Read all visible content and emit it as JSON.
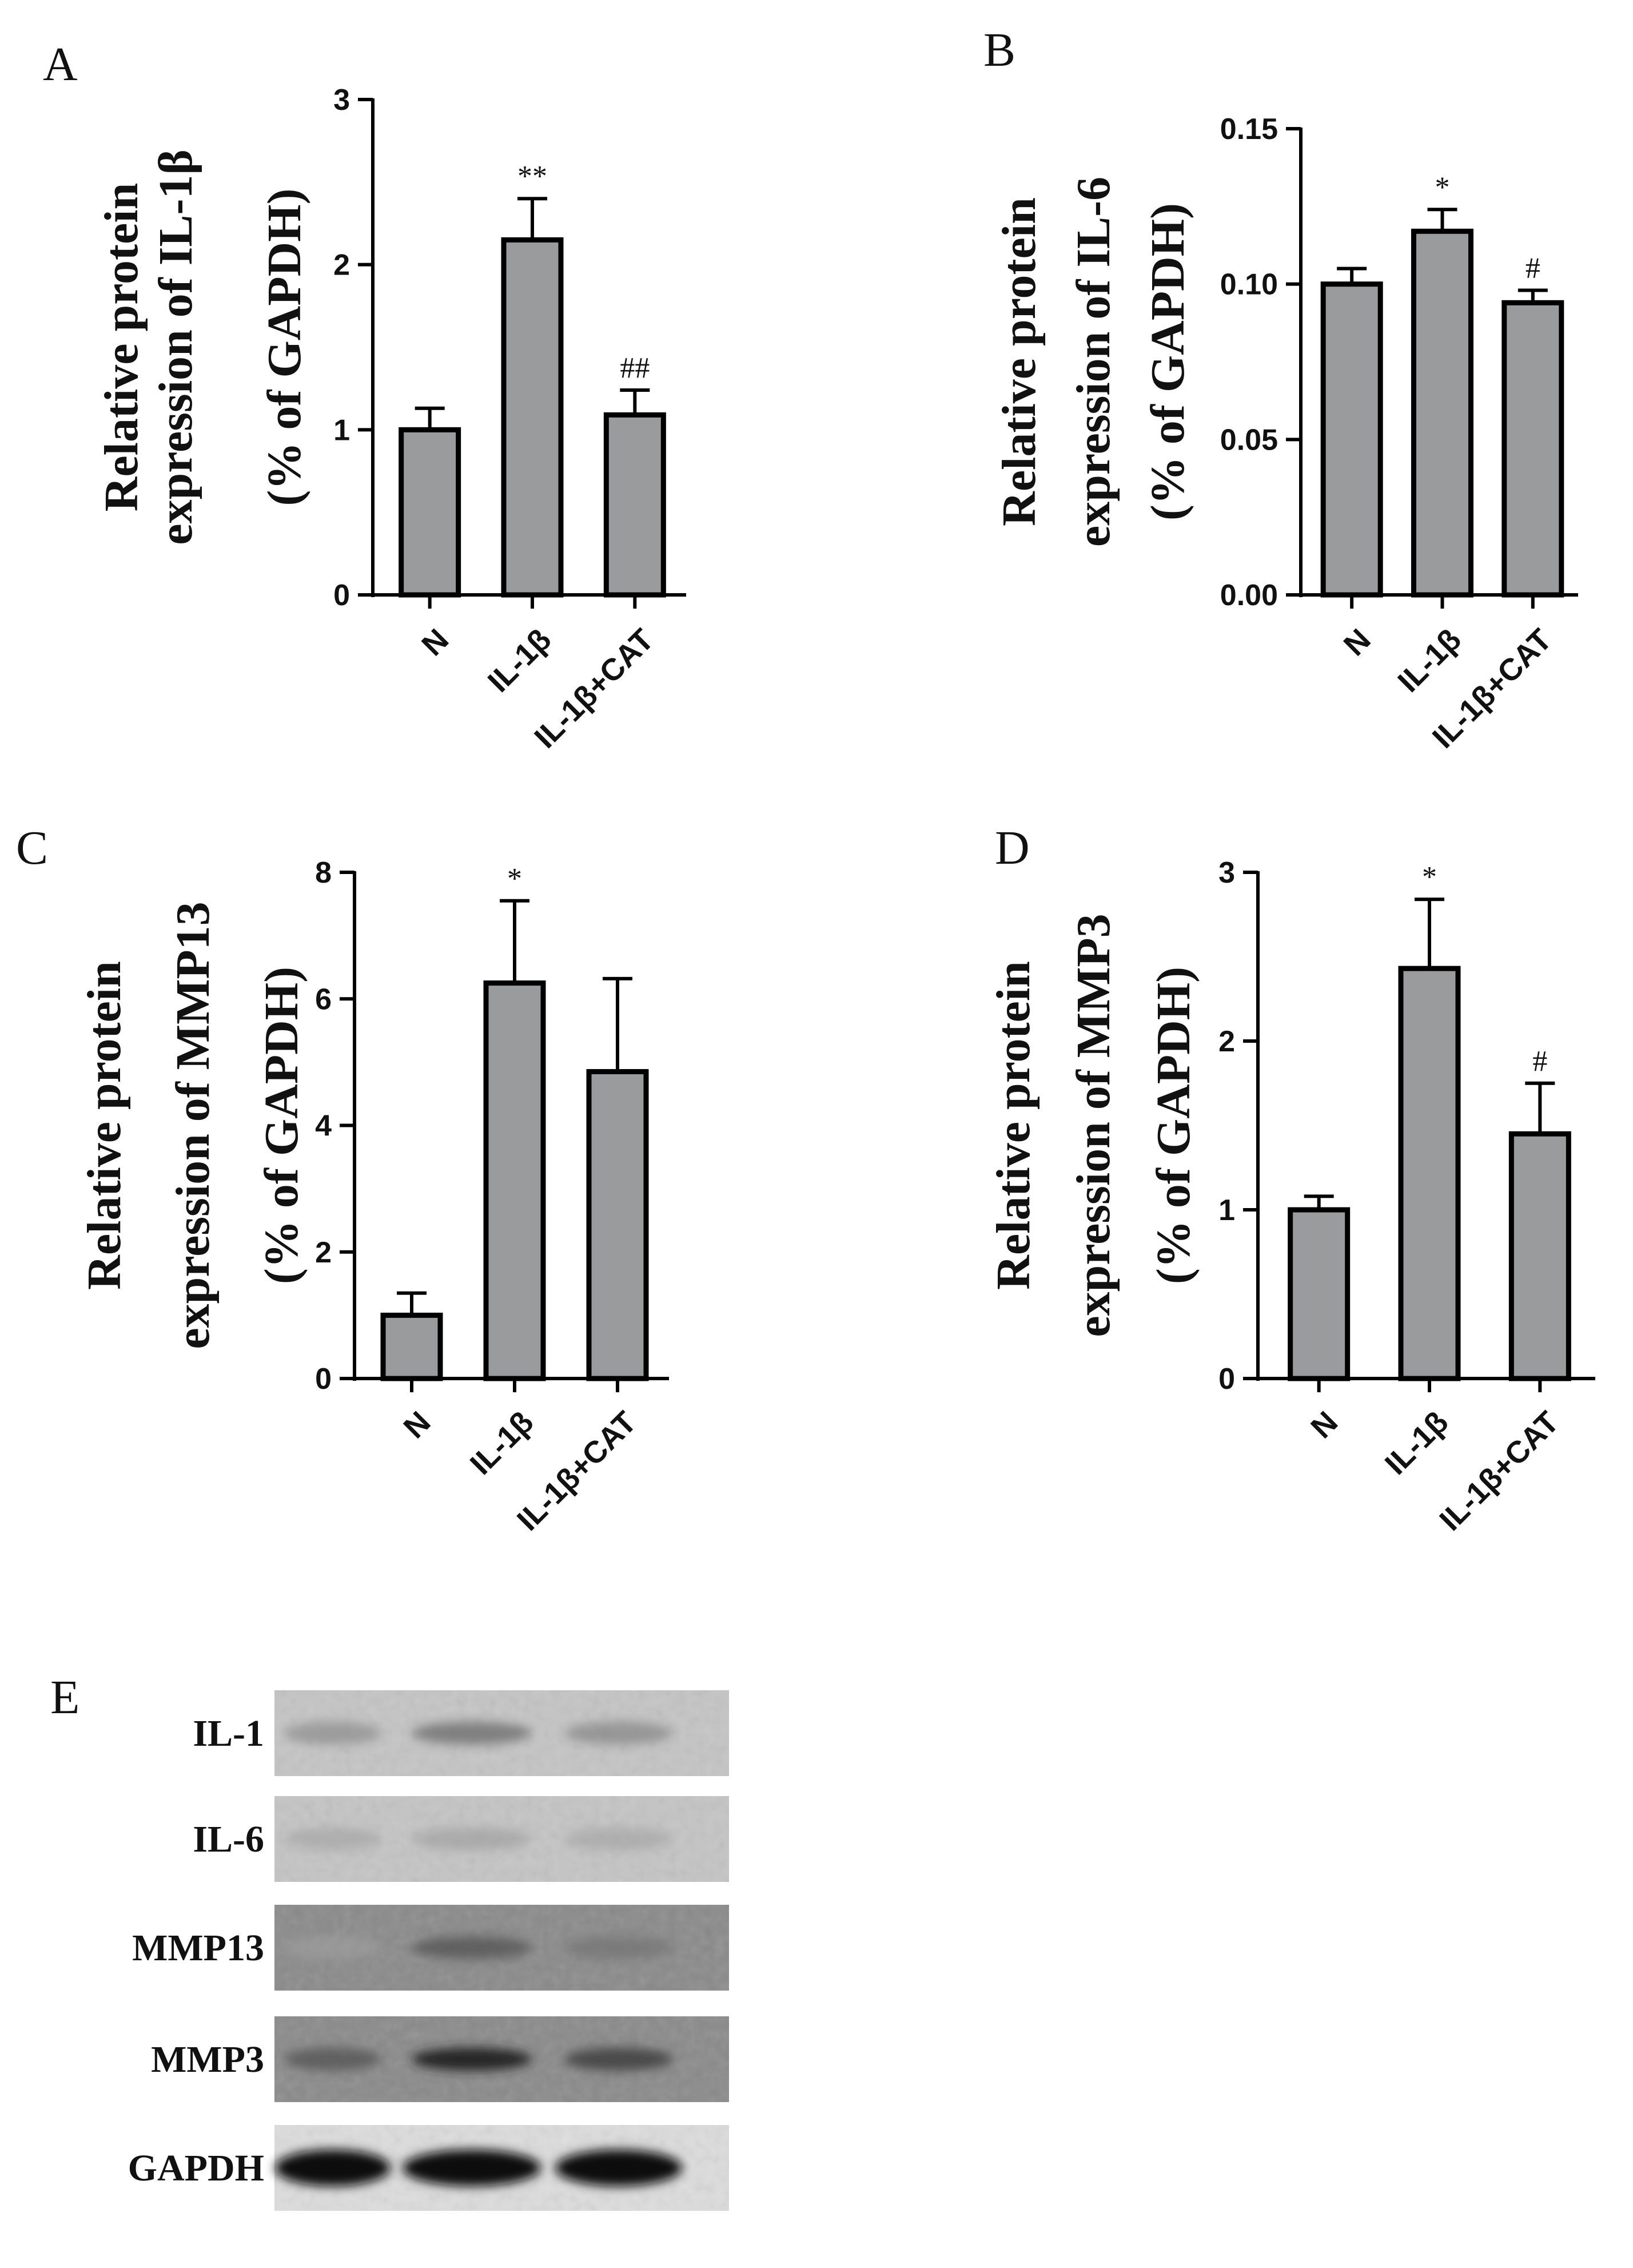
{
  "panel_e_label": "E",
  "colors": {
    "bar_fill": "#9a9b9d",
    "stroke": "#000000",
    "text": "#111111"
  },
  "chart_data": [
    {
      "panel": "A",
      "type": "bar",
      "categories": [
        "N",
        "IL-1β",
        "IL-1β+CAT"
      ],
      "values": [
        1.0,
        2.15,
        1.09
      ],
      "errors": [
        0.13,
        0.25,
        0.15
      ],
      "significance": [
        "",
        "**",
        "##"
      ],
      "ylabel_lines": [
        "Relative protein",
        "expression of IL-1β",
        "(% of GAPDH)"
      ],
      "ylim": [
        0,
        3
      ],
      "yticks": [
        0,
        1,
        2,
        3
      ],
      "ytick_labels": [
        "0",
        "1",
        "2",
        "3"
      ]
    },
    {
      "panel": "B",
      "type": "bar",
      "categories": [
        "N",
        "IL-1β",
        "IL-1β+CAT"
      ],
      "values": [
        0.1,
        0.117,
        0.094
      ],
      "errors": [
        0.005,
        0.007,
        0.004
      ],
      "significance": [
        "",
        "*",
        "#"
      ],
      "ylabel_lines": [
        "Relative protein",
        "expression of IL-6",
        "(% of GAPDH)"
      ],
      "ylim": [
        0,
        0.15
      ],
      "yticks": [
        0,
        0.05,
        0.1,
        0.15
      ],
      "ytick_labels": [
        "0.00",
        "0.05",
        "0.10",
        "0.15"
      ]
    },
    {
      "panel": "C",
      "type": "bar",
      "categories": [
        "N",
        "IL-1β",
        "IL-1β+CAT"
      ],
      "values": [
        1.0,
        6.25,
        4.85
      ],
      "errors": [
        0.35,
        1.3,
        1.47
      ],
      "significance": [
        "",
        "*",
        ""
      ],
      "ylabel_lines": [
        "Relative protein",
        "expression of MMP13",
        "(% of GAPDH)"
      ],
      "ylim": [
        0,
        8
      ],
      "yticks": [
        0,
        2,
        4,
        6,
        8
      ],
      "ytick_labels": [
        "0",
        "2",
        "4",
        "6",
        "8"
      ]
    },
    {
      "panel": "D",
      "type": "bar",
      "categories": [
        "N",
        "IL-1β",
        "IL-1β+CAT"
      ],
      "values": [
        1.0,
        2.43,
        1.45
      ],
      "errors": [
        0.08,
        0.41,
        0.3
      ],
      "significance": [
        "",
        "*",
        "#"
      ],
      "ylabel_lines": [
        "Relative protein",
        "expression of MMP3",
        "(% of GAPDH)"
      ],
      "ylim": [
        0,
        3
      ],
      "yticks": [
        0,
        1,
        2,
        3
      ],
      "ytick_labels": [
        "0",
        "1",
        "2",
        "3"
      ]
    }
  ],
  "blot": {
    "lanes": 3,
    "rows": [
      {
        "label": "IL-1",
        "intensities": [
          0.35,
          0.5,
          0.38
        ]
      },
      {
        "label": "IL-6",
        "intensities": [
          0.22,
          0.25,
          0.22
        ]
      },
      {
        "label": "MMP13",
        "intensities": [
          0.2,
          0.6,
          0.45
        ]
      },
      {
        "label": "MMP3",
        "intensities": [
          0.6,
          0.85,
          0.7
        ]
      },
      {
        "label": "GAPDH",
        "intensities": [
          1.0,
          1.0,
          1.0
        ]
      }
    ]
  }
}
